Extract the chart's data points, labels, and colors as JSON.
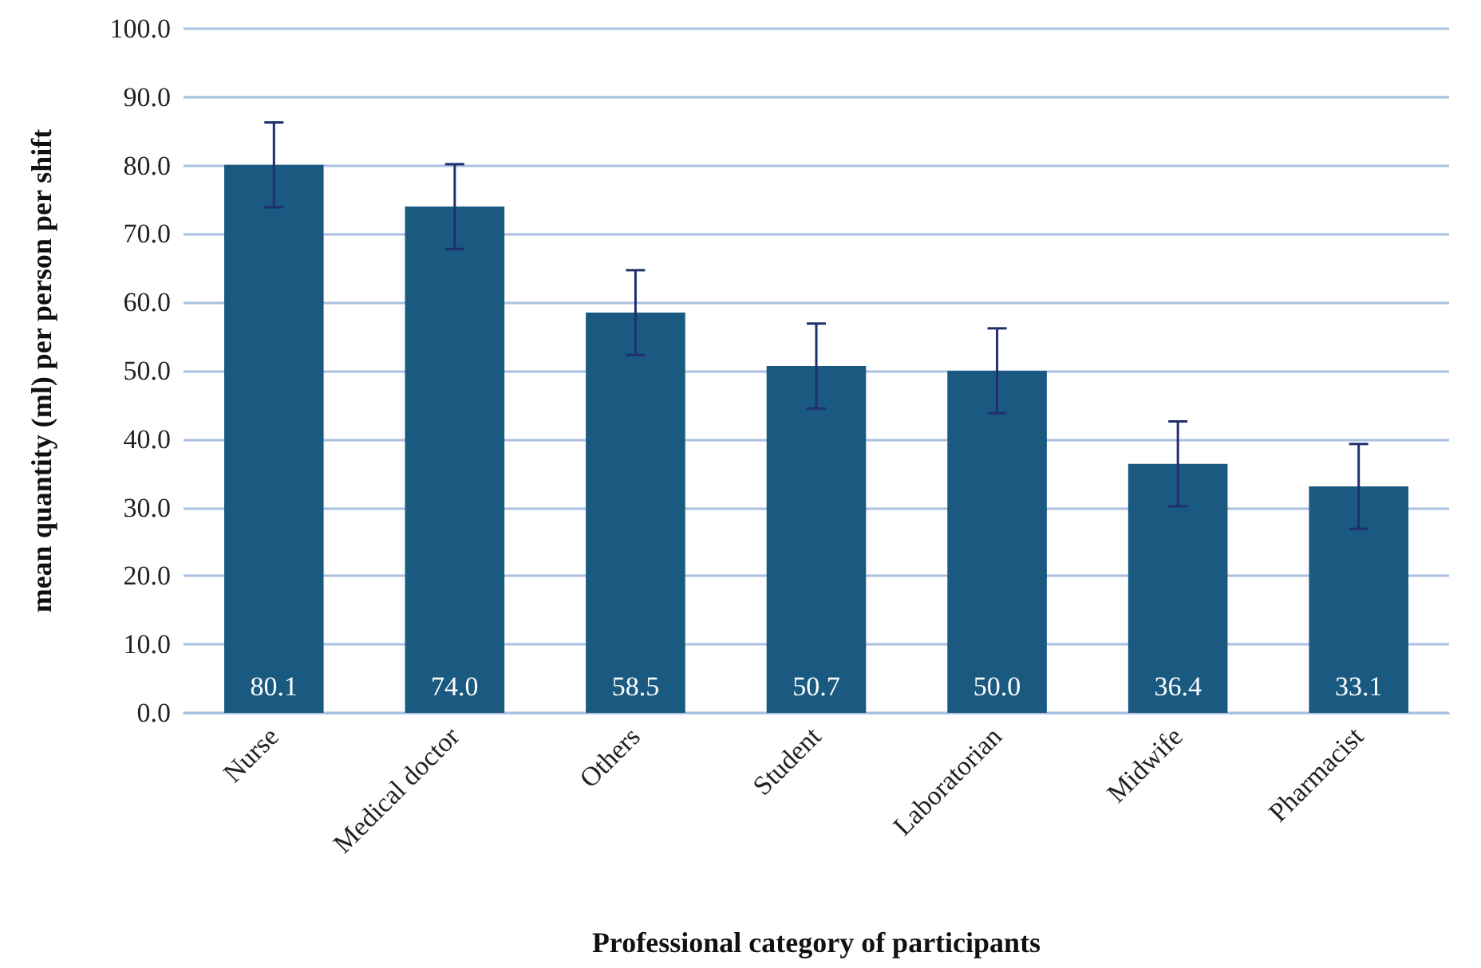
{
  "chart_data": {
    "type": "bar",
    "xlabel": "Professional category of participants",
    "ylabel": "mean quantity (ml) per person per shift",
    "categories": [
      "Nurse",
      "Medical doctor",
      "Others",
      "Student",
      "Laboratorian",
      "Midwife",
      "Pharmacist"
    ],
    "values": [
      80.1,
      74.0,
      58.5,
      50.7,
      50.0,
      36.4,
      33.1
    ],
    "value_labels": [
      "80.1",
      "74.0",
      "58.5",
      "50.7",
      "50.0",
      "36.4",
      "33.1"
    ],
    "errors": [
      6.2,
      6.2,
      6.2,
      6.2,
      6.2,
      6.2,
      6.2
    ],
    "color": "#1a5a80",
    "ylim": [
      0,
      100
    ],
    "yticks": [
      {
        "value": 0,
        "label": "0.0"
      },
      {
        "value": 10,
        "label": "10.0"
      },
      {
        "value": 20,
        "label": "20.0"
      },
      {
        "value": 30,
        "label": "30.0"
      },
      {
        "value": 40,
        "label": "40.0"
      },
      {
        "value": 50,
        "label": "50.0"
      },
      {
        "value": 60,
        "label": "60.0"
      },
      {
        "value": 70,
        "label": "70.0"
      },
      {
        "value": 80,
        "label": "80.0"
      },
      {
        "value": 90,
        "label": "90.0"
      },
      {
        "value": 100,
        "label": "100.0"
      }
    ],
    "grid": "y"
  }
}
